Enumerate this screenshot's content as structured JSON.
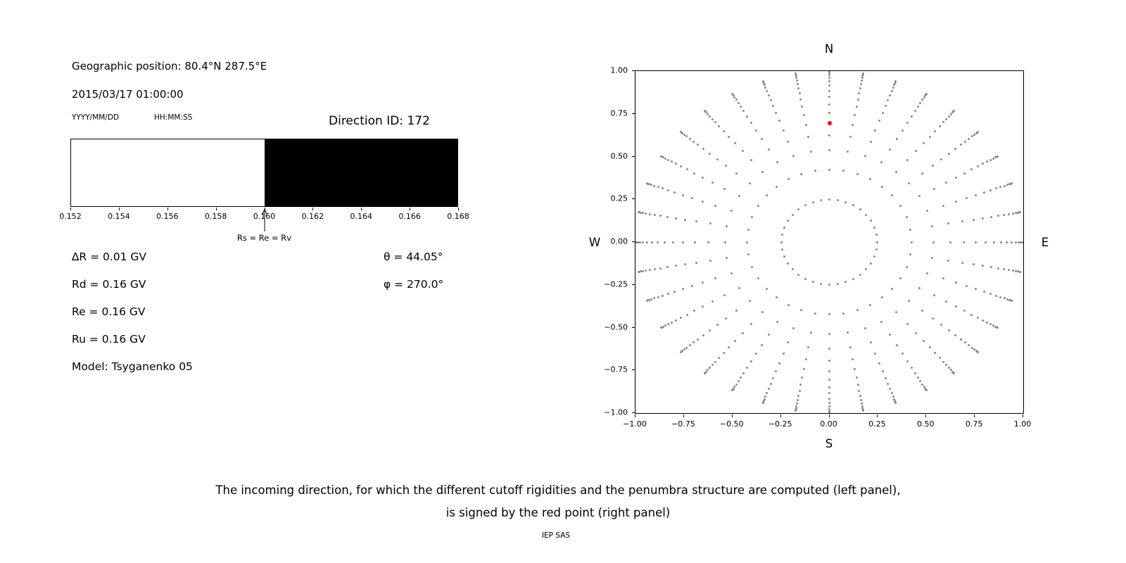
{
  "left_panel": {
    "geo_position": "Geographic position: 80.4°N 287.5°E",
    "datetime": "2015/03/17 01:00:00",
    "date_format_label": "YYYY/MM/DD",
    "time_format_label": "HH:MM:SS",
    "direction_id": "Direction ID: 172",
    "params": {
      "delta_r": "∆R = 0.01 GV",
      "rd": "Rd = 0.16 GV",
      "re": "Re = 0.16 GV",
      "ru": "Ru = 0.16 GV",
      "model": "Model: Tsyganenko 05",
      "theta": "θ = 44.05°",
      "phi": "φ = 270.0°"
    }
  },
  "chart_data": [
    {
      "type": "bar",
      "title": "penumbra structure strip",
      "xlabel": "",
      "ylabel": "",
      "xlim": [
        0.152,
        0.168
      ],
      "xticks": [
        {
          "v": 0.152,
          "label": "0.152"
        },
        {
          "v": 0.154,
          "label": "0.154"
        },
        {
          "v": 0.156,
          "label": "0.156"
        },
        {
          "v": 0.158,
          "label": "0.158"
        },
        {
          "v": 0.16,
          "label": "0.160"
        },
        {
          "v": 0.162,
          "label": "0.162"
        },
        {
          "v": 0.164,
          "label": "0.164"
        },
        {
          "v": 0.166,
          "label": "0.166"
        },
        {
          "v": 0.168,
          "label": "0.168"
        }
      ],
      "segments": [
        {
          "x0": 0.152,
          "x1": 0.16,
          "color": "#ffffff"
        },
        {
          "x0": 0.16,
          "x1": 0.168,
          "color": "#000000"
        }
      ],
      "annotation": {
        "x": 0.16,
        "label": "Rs = Re = Rv"
      }
    },
    {
      "type": "scatter",
      "title": "incoming directions grid",
      "xlim": [
        -1,
        1
      ],
      "ylim": [
        -1,
        1
      ],
      "grid": false,
      "xticks": [
        {
          "v": -1,
          "label": "−1.00"
        },
        {
          "v": -0.75,
          "label": "−0.75"
        },
        {
          "v": -0.5,
          "label": "−0.50"
        },
        {
          "v": -0.25,
          "label": "−0.25"
        },
        {
          "v": 0,
          "label": "0.00"
        },
        {
          "v": 0.25,
          "label": "0.25"
        },
        {
          "v": 0.5,
          "label": "0.50"
        },
        {
          "v": 0.75,
          "label": "0.75"
        },
        {
          "v": 1,
          "label": "1.00"
        }
      ],
      "yticks": [
        {
          "v": 1,
          "label": "1.00"
        },
        {
          "v": 0.75,
          "label": "0.75"
        },
        {
          "v": 0.5,
          "label": "0.50"
        },
        {
          "v": 0.25,
          "label": "0.25"
        },
        {
          "v": 0,
          "label": "0.00"
        },
        {
          "v": -0.25,
          "label": "−0.25"
        },
        {
          "v": -0.5,
          "label": "−0.50"
        },
        {
          "v": -0.75,
          "label": "−0.75"
        },
        {
          "v": -1,
          "label": "−1.00"
        }
      ],
      "direction_labels": {
        "top": "N",
        "bottom": "S",
        "left": "W",
        "right": "E"
      },
      "grid_points": {
        "azimuth_count": 36,
        "azimuth_step_deg": 10,
        "ring_radii": [
          0.248,
          0.423,
          0.537,
          0.624,
          0.695,
          0.755,
          0.805,
          0.848,
          0.884,
          0.915,
          0.94,
          0.961,
          0.977,
          0.989,
          0.996,
          1.0
        ]
      },
      "point_color": "#8a8a8a",
      "selected_point": {
        "x": 0.0,
        "y": 0.695,
        "color": "#ff0000"
      }
    }
  ],
  "caption": {
    "line1": "The incoming direction, for which the different cutoff rigidities and the penumbra structure are computed (left panel),",
    "line2": "is signed by the red point (right panel)",
    "credit": "IEP SAS"
  }
}
